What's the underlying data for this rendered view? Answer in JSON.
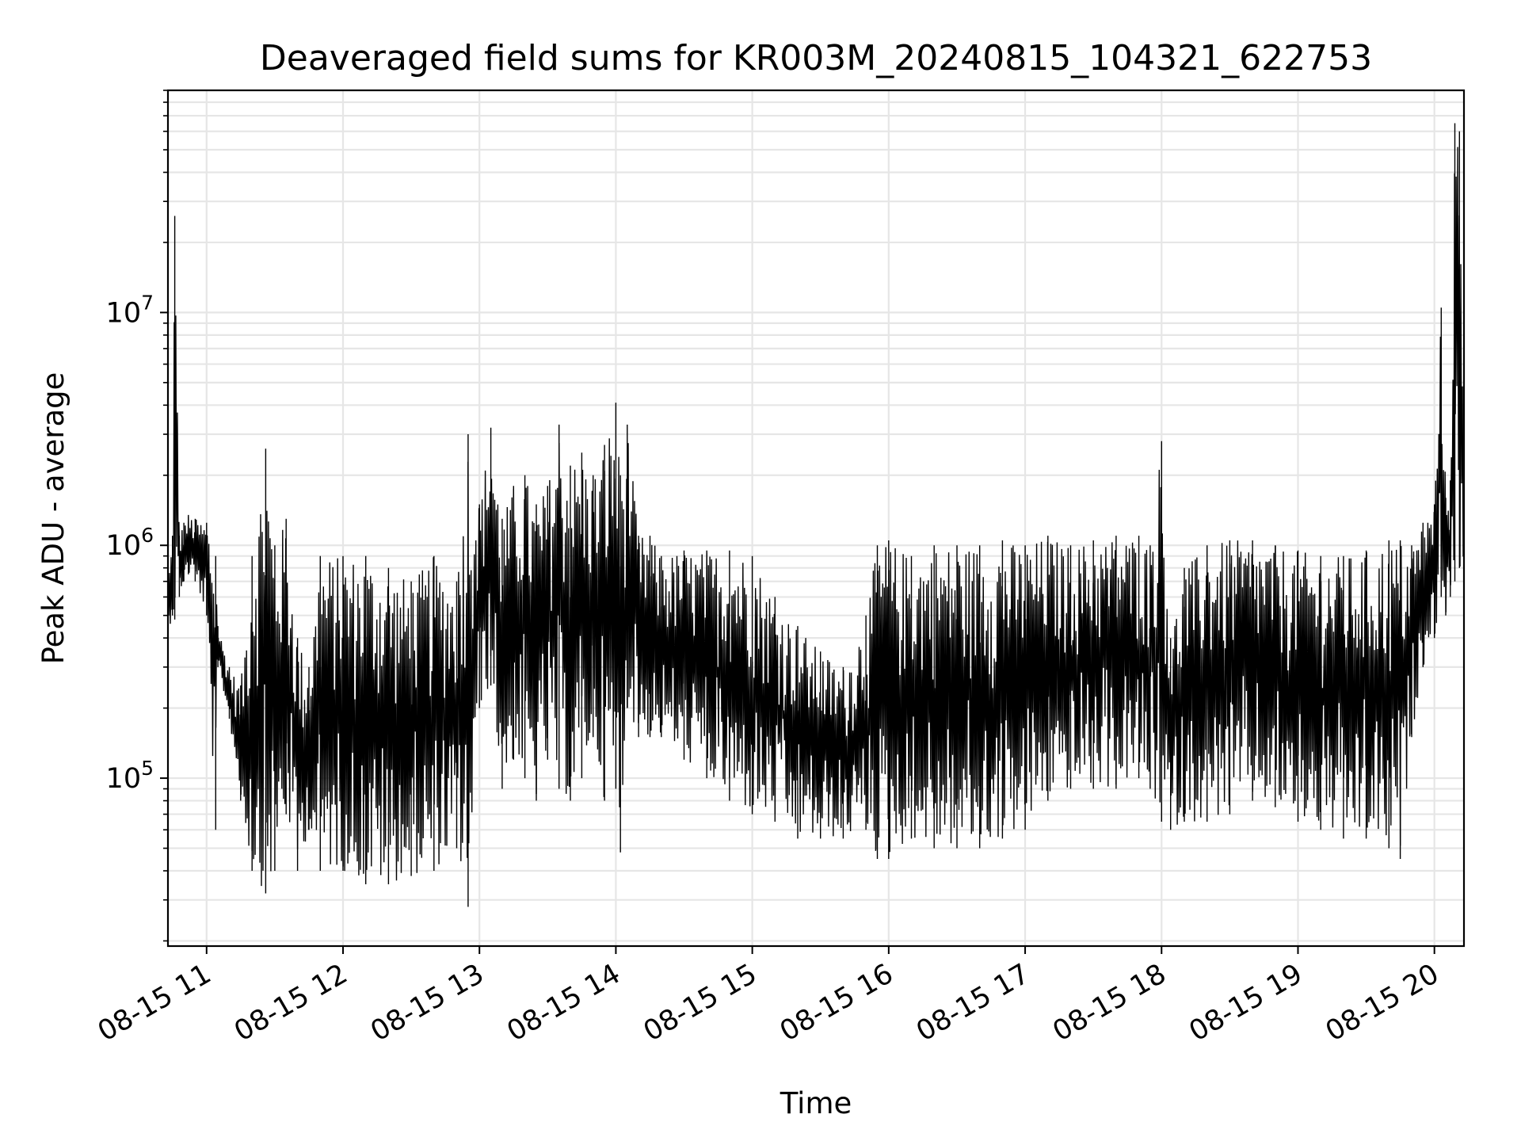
{
  "chart_data": {
    "type": "line",
    "title": "Deaveraged field sums for KR003M_20240815_104321_622753",
    "xlabel": "Time",
    "ylabel": "Peak ADU - average",
    "y_scale": "log",
    "ylim": [
      19000,
      90000000
    ],
    "xlim": [
      "2024-08-15 10:43",
      "2024-08-15 20:13"
    ],
    "grid": true,
    "line_color": "#000000",
    "grid_color": "#e6e6e6",
    "x_ticks": [
      "2024-08-15 11:00",
      "2024-08-15 12:00",
      "2024-08-15 13:00",
      "2024-08-15 14:00",
      "2024-08-15 15:00",
      "2024-08-15 16:00",
      "2024-08-15 17:00",
      "2024-08-15 18:00",
      "2024-08-15 19:00",
      "2024-08-15 20:00"
    ],
    "x_tick_labels": [
      "08-15 11",
      "08-15 12",
      "08-15 13",
      "08-15 14",
      "08-15 15",
      "08-15 16",
      "08-15 17",
      "08-15 18",
      "08-15 19",
      "08-15 20"
    ],
    "y_ticks": [
      {
        "value": 100000,
        "base": "10",
        "exp": "5"
      },
      {
        "value": 1000000,
        "base": "10",
        "exp": "6"
      },
      {
        "value": 10000000,
        "base": "10",
        "exp": "7"
      }
    ],
    "series": [
      {
        "x": [
          "2024-08-15 10:43",
          "2024-08-15 10:45",
          "2024-08-15 10:46",
          "2024-08-15 10:48",
          "2024-08-15 10:50",
          "2024-08-15 10:52",
          "2024-08-15 10:55",
          "2024-08-15 11:00",
          "2024-08-15 11:04",
          "2024-08-15 11:05",
          "2024-08-15 11:10",
          "2024-08-15 11:15",
          "2024-08-15 11:20",
          "2024-08-15 11:26",
          "2024-08-15 11:30",
          "2024-08-15 11:35",
          "2024-08-15 11:40",
          "2024-08-15 11:45",
          "2024-08-15 11:50",
          "2024-08-15 12:00",
          "2024-08-15 12:10",
          "2024-08-15 12:20",
          "2024-08-15 12:30",
          "2024-08-15 12:40",
          "2024-08-15 12:50",
          "2024-08-15 12:55",
          "2024-08-15 13:00",
          "2024-08-15 13:05",
          "2024-08-15 13:10",
          "2024-08-15 13:15",
          "2024-08-15 13:20",
          "2024-08-15 13:25",
          "2024-08-15 13:30",
          "2024-08-15 13:35",
          "2024-08-15 13:40",
          "2024-08-15 13:45",
          "2024-08-15 13:50",
          "2024-08-15 13:55",
          "2024-08-15 14:00",
          "2024-08-15 14:02",
          "2024-08-15 14:05",
          "2024-08-15 14:10",
          "2024-08-15 14:15",
          "2024-08-15 14:20",
          "2024-08-15 14:30",
          "2024-08-15 14:40",
          "2024-08-15 14:50",
          "2024-08-15 15:00",
          "2024-08-15 15:10",
          "2024-08-15 15:20",
          "2024-08-15 15:30",
          "2024-08-15 15:40",
          "2024-08-15 15:50",
          "2024-08-15 15:55",
          "2024-08-15 16:00",
          "2024-08-15 16:10",
          "2024-08-15 16:20",
          "2024-08-15 16:30",
          "2024-08-15 16:40",
          "2024-08-15 16:50",
          "2024-08-15 17:00",
          "2024-08-15 17:10",
          "2024-08-15 17:20",
          "2024-08-15 17:30",
          "2024-08-15 17:40",
          "2024-08-15 17:50",
          "2024-08-15 17:55",
          "2024-08-15 18:00",
          "2024-08-15 18:04",
          "2024-08-15 18:10",
          "2024-08-15 18:20",
          "2024-08-15 18:30",
          "2024-08-15 18:40",
          "2024-08-15 18:50",
          "2024-08-15 19:00",
          "2024-08-15 19:10",
          "2024-08-15 19:20",
          "2024-08-15 19:30",
          "2024-08-15 19:40",
          "2024-08-15 19:45",
          "2024-08-15 19:50",
          "2024-08-15 19:55",
          "2024-08-15 20:00",
          "2024-08-15 20:03",
          "2024-08-15 20:05",
          "2024-08-15 20:07",
          "2024-08-15 20:09",
          "2024-08-15 20:11",
          "2024-08-15 20:13"
        ],
        "lower": [
          420000,
          500000,
          480000,
          600000,
          700000,
          750000,
          700000,
          500000,
          60000,
          300000,
          180000,
          80000,
          40000,
          32000,
          40000,
          70000,
          40000,
          60000,
          40000,
          40000,
          35000,
          35000,
          38000,
          40000,
          50000,
          28000,
          200000,
          250000,
          90000,
          120000,
          100000,
          80000,
          120000,
          90000,
          80000,
          100000,
          150000,
          80000,
          90000,
          48000,
          200000,
          150000,
          150000,
          150000,
          120000,
          100000,
          80000,
          70000,
          65000,
          55000,
          55000,
          55000,
          60000,
          45000,
          45000,
          55000,
          50000,
          50000,
          50000,
          55000,
          60000,
          80000,
          90000,
          90000,
          90000,
          100000,
          90000,
          65000,
          60000,
          65000,
          65000,
          70000,
          80000,
          75000,
          65000,
          60000,
          55000,
          55000,
          50000,
          45000,
          150000,
          300000,
          400000,
          600000,
          500000,
          600000,
          700000,
          800000,
          650000
        ],
        "upper": [
          700000,
          1100000,
          26000000,
          1100000,
          1250000,
          1350000,
          1300000,
          1250000,
          900000,
          450000,
          300000,
          250000,
          900000,
          2600000,
          1000000,
          1300000,
          400000,
          300000,
          900000,
          900000,
          900000,
          800000,
          700000,
          900000,
          700000,
          3000000,
          1500000,
          3200000,
          1300000,
          1800000,
          2000000,
          1500000,
          1800000,
          3300000,
          2200000,
          2500000,
          2000000,
          2700000,
          4100000,
          2000000,
          3300000,
          1100000,
          1100000,
          900000,
          950000,
          950000,
          950000,
          900000,
          600000,
          450000,
          350000,
          300000,
          500000,
          1000000,
          1050000,
          900000,
          1000000,
          1000000,
          1000000,
          1050000,
          1000000,
          1100000,
          1000000,
          1050000,
          1100000,
          1100000,
          1000000,
          2800000,
          400000,
          800000,
          1000000,
          1050000,
          1050000,
          1000000,
          950000,
          900000,
          900000,
          950000,
          1050000,
          1050000,
          1000000,
          1250000,
          1500000,
          10500000,
          1600000,
          1900000,
          65000000,
          60000000,
          1700000
        ]
      }
    ]
  }
}
